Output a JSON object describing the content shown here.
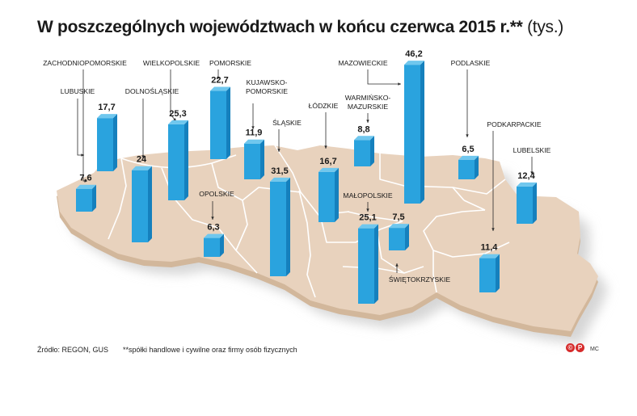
{
  "title": {
    "main": "W poszczególnych województwach w końcu czerwca 2015 r.**",
    "unit": "(tys.)"
  },
  "footer": {
    "source": "Źródło: REGON, GUS",
    "note": "**spółki handlowe i cywilne oraz firmy osób fizycznych",
    "copyright_letters": [
      "©",
      "P"
    ],
    "author": "MC"
  },
  "colors": {
    "bar_front": "#2aa3de",
    "bar_side": "#1580bd",
    "bar_top": "#6fc7ee",
    "map_fill": "#e8d2bd",
    "map_edge": "#d2b79b",
    "borders": "#ffffff",
    "shadow": "#d6d6d6",
    "copyright": "#d62b2b"
  },
  "chart_data": {
    "type": "bar",
    "unit": "tys.",
    "categories": [
      "ZACHODNIOPOMORSKIE",
      "LUBUSKIE",
      "WIELKOPOLSKIE",
      "DOLNOŚLĄSKIE",
      "POMORSKIE",
      "KUJAWSKO-POMORSKIE",
      "OPOLSKIE",
      "ŚLĄSKIE",
      "ŁÓDZKIE",
      "WARMIŃSKO-MAZURSKIE",
      "MAZOWIECKIE",
      "MAŁOPOLSKIE",
      "ŚWIĘTOKRZYSKIE",
      "PODLASKIE",
      "LUBELSKIE",
      "PODKARPACKIE"
    ],
    "values": [
      17.7,
      7.6,
      25.3,
      24,
      22.7,
      11.9,
      6.3,
      31.5,
      16.7,
      8.8,
      46.2,
      25.1,
      7.5,
      6.5,
      12.4,
      11.4
    ],
    "value_labels": [
      "17,7",
      "7,6",
      "25,3",
      "24",
      "22,7",
      "11,9",
      "6,3",
      "31,5",
      "16,7",
      "8,8",
      "46,2",
      "25,1",
      "7,5",
      "6,5",
      "12,4",
      "11,4"
    ]
  }
}
